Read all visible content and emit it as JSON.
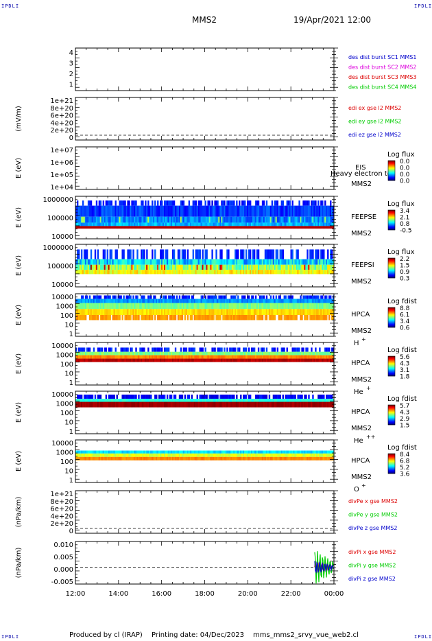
{
  "header": {
    "title": "MMS2",
    "datetime": "19/Apr/2021 12:00"
  },
  "corner_label": "IPDLI",
  "footer": {
    "produced_by": "Produced by cl (IRAP)",
    "printing_date": "Printing date: 04/Dec/2023",
    "script_name": "mms_mms2_srvy_vue_web2.cl"
  },
  "xaxis": {
    "ticks": [
      "12:00",
      "14:00",
      "16:00",
      "18:00",
      "20:00",
      "22:00",
      "00:00"
    ]
  },
  "colors": {
    "red": "#dd0000",
    "magenta": "#dd00dd",
    "green": "#00cc00",
    "blue": "#0000cc"
  },
  "chart_data": [
    {
      "type": "line",
      "id": "des",
      "ticks": [
        "4",
        "3",
        "2",
        "1"
      ],
      "legend": [
        {
          "text": "des dist burst SC1 MMS1",
          "color": "#0000cc"
        },
        {
          "text": "des dist burst SC2 MMS2",
          "color": "#dd00dd"
        },
        {
          "text": "des dist burst SC3 MMS3",
          "color": "#dd0000"
        },
        {
          "text": "des dist burst SC4 MMS4",
          "color": "#00cc00"
        }
      ]
    },
    {
      "type": "line",
      "id": "edi",
      "ylabel": "(mV/m)",
      "ticks": [
        "1e+21",
        "8e+20",
        "6e+20",
        "4e+20",
        "2e+20",
        "0"
      ],
      "legend": [
        {
          "text": "edi ex gse l2 MMS2",
          "color": "#dd0000"
        },
        {
          "text": "edi ey gse l2 MMS2",
          "color": "#00cc00"
        },
        {
          "text": "edi ez gse l2 MMS2",
          "color": "#0000cc"
        }
      ]
    },
    {
      "type": "heatmap",
      "id": "eis",
      "ylabel": "E (eV)",
      "ticks": [
        "1e+07",
        "1e+06",
        "1e+05",
        "1e+04"
      ],
      "labels": [
        "EIS",
        "MMS2"
      ],
      "overlay": "Heavy electron tof",
      "cbar_title": "Log flux",
      "cbar": [
        "0.0",
        "0.0",
        "0.0",
        "0.0"
      ]
    },
    {
      "type": "heatmap",
      "id": "feepse",
      "ylabel": "E (eV)",
      "ticks": [
        "1000000",
        "100000",
        "10000"
      ],
      "labels": [
        "FEEPSE",
        "MMS2"
      ],
      "cbar_title": "Log flux",
      "cbar": [
        "3.4",
        "2.1",
        "0.8",
        "-0.5"
      ]
    },
    {
      "type": "heatmap",
      "id": "feepsi",
      "ylabel": "E (eV)",
      "ticks": [
        "1000000",
        "100000",
        "10000"
      ],
      "labels": [
        "FEEPSI",
        "MMS2"
      ],
      "cbar_title": "Log flux",
      "cbar": [
        "2.2",
        "1.5",
        "0.9",
        "0.3"
      ]
    },
    {
      "type": "heatmap",
      "id": "hpca_h",
      "ylabel": "E (eV)",
      "ticks": [
        "10000",
        "1000",
        "100",
        "10",
        "1"
      ],
      "labels": [
        "HPCA",
        "MMS2"
      ],
      "species": "H",
      "charge": "+",
      "cbar_title": "Log fdist",
      "cbar": [
        "8.8",
        "6.1",
        "3.4",
        "0.6"
      ]
    },
    {
      "type": "heatmap",
      "id": "hpca_he",
      "ylabel": "E (eV)",
      "ticks": [
        "10000",
        "1000",
        "100",
        "10",
        "1"
      ],
      "labels": [
        "HPCA",
        "MMS2"
      ],
      "species": "He",
      "charge": "+",
      "cbar_title": "Log fdist",
      "cbar": [
        "5.6",
        "4.3",
        "3.1",
        "1.8"
      ]
    },
    {
      "type": "heatmap",
      "id": "hpca_hepp",
      "ylabel": "E (eV)",
      "ticks": [
        "10000",
        "1000",
        "100",
        "10",
        "1"
      ],
      "labels": [
        "HPCA",
        "MMS2"
      ],
      "species": "He",
      "charge": "++",
      "cbar_title": "Log fdist",
      "cbar": [
        "5.7",
        "4.3",
        "2.9",
        "1.5"
      ]
    },
    {
      "type": "heatmap",
      "id": "hpca_o",
      "ylabel": "E (eV)",
      "ticks": [
        "10000",
        "1000",
        "100",
        "10",
        "1"
      ],
      "labels": [
        "HPCA",
        "MMS2"
      ],
      "species": "O",
      "charge": "+",
      "cbar_title": "Log fdist",
      "cbar": [
        "8.4",
        "6.8",
        "5.2",
        "3.6"
      ]
    },
    {
      "type": "line",
      "id": "divpe",
      "ylabel": "(nPa/km)",
      "ticks": [
        "1e+21",
        "8e+20",
        "6e+20",
        "4e+20",
        "2e+20",
        "0"
      ],
      "legend": [
        {
          "text": "divPe x gse MMS2",
          "color": "#dd0000"
        },
        {
          "text": "divPe y gse MMS2",
          "color": "#00cc00"
        },
        {
          "text": "divPe z gse MMS2",
          "color": "#0000cc"
        }
      ]
    },
    {
      "type": "line",
      "id": "divpi",
      "ylabel": "(nPa/km)",
      "ticks": [
        "0.010",
        "0.005",
        "0.000",
        "-0.005"
      ],
      "ylim": [
        -0.0075,
        0.0115
      ],
      "legend": [
        {
          "text": "divPi x gse MMS2",
          "color": "#dd0000"
        },
        {
          "text": "divPi y gse MMS2",
          "color": "#00cc00"
        },
        {
          "text": "divPi z gse MMS2",
          "color": "#0000cc"
        }
      ]
    }
  ]
}
